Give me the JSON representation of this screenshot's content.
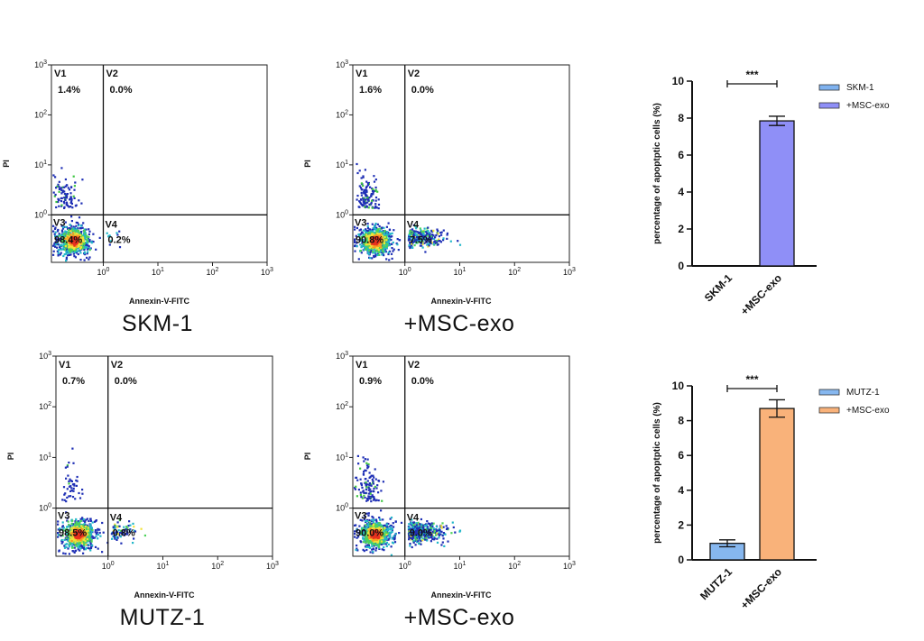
{
  "chart_data": [
    {
      "type": "scatter",
      "panel": "flow-1",
      "xlabel": "Annexin-V-FITC",
      "ylabel": "PI",
      "caption": "SKM-1",
      "x_ticks": [
        "10^0",
        "10^1",
        "10^2",
        "10^3"
      ],
      "y_ticks": [
        "10^0",
        "10^1",
        "10^2",
        "10^3"
      ],
      "quadrants": [
        {
          "name": "V1",
          "value": "1.4%"
        },
        {
          "name": "V2",
          "value": "0.0%"
        },
        {
          "name": "V3",
          "value": "98.4%"
        },
        {
          "name": "V4",
          "value": "0.2%"
        }
      ],
      "gate": {
        "x": 1.0,
        "y": 1.0
      },
      "population": {
        "upper_left": 90,
        "lower_right": 10,
        "spread": 0.6
      }
    },
    {
      "type": "scatter",
      "panel": "flow-2",
      "xlabel": "Annexin-V-FITC",
      "ylabel": "PI",
      "caption": "+MSC-exo",
      "x_ticks": [
        "10^0",
        "10^1",
        "10^2",
        "10^3"
      ],
      "y_ticks": [
        "10^0",
        "10^1",
        "10^2",
        "10^3"
      ],
      "quadrants": [
        {
          "name": "V1",
          "value": "1.6%"
        },
        {
          "name": "V2",
          "value": "0.0%"
        },
        {
          "name": "V3",
          "value": "90.8%"
        },
        {
          "name": "V4",
          "value": "7.5%"
        }
      ],
      "gate": {
        "x": 1.0,
        "y": 1.0
      },
      "population": {
        "upper_left": 120,
        "lower_right": 260,
        "spread": 1.3
      }
    },
    {
      "type": "scatter",
      "panel": "flow-3",
      "xlabel": "Annexin-V-FITC",
      "ylabel": "PI",
      "caption": "MUTZ-1",
      "x_ticks": [
        "10^0",
        "10^1",
        "10^2",
        "10^3"
      ],
      "y_ticks": [
        "10^0",
        "10^1",
        "10^2",
        "10^3"
      ],
      "quadrants": [
        {
          "name": "V1",
          "value": "0.7%"
        },
        {
          "name": "V2",
          "value": "0.0%"
        },
        {
          "name": "V3",
          "value": "98.5%"
        },
        {
          "name": "V4",
          "value": "0.8%"
        }
      ],
      "gate": {
        "x": 1.0,
        "y": 1.0
      },
      "population": {
        "upper_left": 45,
        "lower_right": 70,
        "spread": 1.0
      }
    },
    {
      "type": "scatter",
      "panel": "flow-4",
      "xlabel": "Annexin-V-FITC",
      "ylabel": "PI",
      "caption": "+MSC-exo",
      "x_ticks": [
        "10^0",
        "10^1",
        "10^2",
        "10^3"
      ],
      "y_ticks": [
        "10^0",
        "10^1",
        "10^2",
        "10^3"
      ],
      "quadrants": [
        {
          "name": "V1",
          "value": "0.9%"
        },
        {
          "name": "V2",
          "value": "0.0%"
        },
        {
          "name": "V3",
          "value": "90.0%"
        },
        {
          "name": "V4",
          "value": "9.0%"
        }
      ],
      "gate": {
        "x": 1.0,
        "y": 1.0
      },
      "population": {
        "upper_left": 110,
        "lower_right": 420,
        "spread": 1.4
      }
    },
    {
      "type": "bar",
      "panel": "bar-top",
      "categories": [
        "SKM-1",
        "+MSC-exo"
      ],
      "values": [
        0.0,
        7.85
      ],
      "errors": [
        0.0,
        0.25
      ],
      "colors": [
        "#7fb2ef",
        "#8f8ff7"
      ],
      "legend": [
        "SKM-1",
        "+MSC-exo"
      ],
      "ylabel": "percentage of apoptptic cells (%)",
      "ylim": [
        0,
        10
      ],
      "yticks": [
        0,
        2,
        4,
        6,
        8,
        10
      ],
      "significance": "***"
    },
    {
      "type": "bar",
      "panel": "bar-bottom",
      "categories": [
        "MUTZ-1",
        "+MSC-exo"
      ],
      "values": [
        0.95,
        8.7
      ],
      "errors": [
        0.2,
        0.5
      ],
      "colors": [
        "#86b7ef",
        "#f9b27a"
      ],
      "legend": [
        "MUTZ-1",
        "+MSC-exo"
      ],
      "ylabel": "percentage of apoptptic cells (%)",
      "ylim": [
        0,
        10
      ],
      "yticks": [
        0,
        2,
        4,
        6,
        8,
        10
      ],
      "significance": "***"
    }
  ]
}
